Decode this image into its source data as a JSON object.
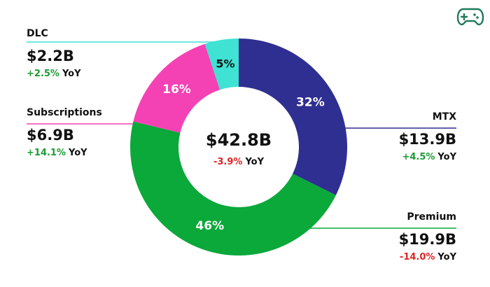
{
  "colors": {
    "mtx": "#2f2f91",
    "premium": "#0ba83a",
    "subscriptions": "#f442b5",
    "dlc": "#3fe2d3",
    "positive": "#1a9c33",
    "negative": "#e02424",
    "gamepad": "#1f7a5a"
  },
  "icon": {
    "name": "gamepad-icon"
  },
  "chart_data": {
    "type": "pie",
    "style": "donut",
    "title": "",
    "center": {
      "total": "$42.8B",
      "change": "-3.9%",
      "yoy": "YoY"
    },
    "slices": [
      {
        "name": "MTX",
        "percent": 32,
        "percent_label": "32%",
        "value": "$13.9B",
        "change": "+4.5%",
        "yoy": "YoY",
        "color": "#2f2f91"
      },
      {
        "name": "Premium",
        "percent": 46,
        "percent_label": "46%",
        "value": "$19.9B",
        "change": "-14.0%",
        "yoy": "YoY",
        "color": "#0ba83a"
      },
      {
        "name": "Subscriptions",
        "percent": 16,
        "percent_label": "16%",
        "value": "$6.9B",
        "change": "+14.1%",
        "yoy": "YoY",
        "color": "#f442b5"
      },
      {
        "name": "DLC",
        "percent": 5,
        "percent_label": "5%",
        "value": "$2.2B",
        "change": "+2.5%",
        "yoy": "YoY",
        "color": "#3fe2d3"
      }
    ]
  }
}
